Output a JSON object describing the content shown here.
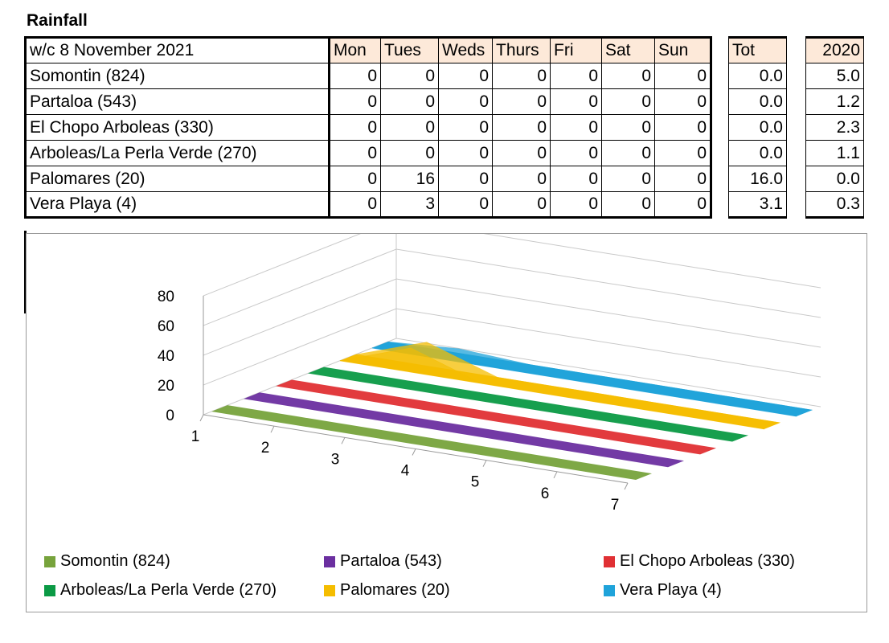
{
  "title": "Rainfall",
  "table": {
    "header_label": "w/c 8 November 2021",
    "days": [
      "Mon",
      "Tues",
      "Weds",
      "Thurs",
      "Fri",
      "Sat",
      "Sun"
    ],
    "tot_label": "Tot",
    "prev_label": "2020",
    "rows": [
      {
        "site": "Somontin (824)",
        "values": [
          "0",
          "0",
          "0",
          "0",
          "0",
          "0",
          "0"
        ],
        "tot": "0.0",
        "prev": "5.0"
      },
      {
        "site": "Partaloa (543)",
        "values": [
          "0",
          "0",
          "0",
          "0",
          "0",
          "0",
          "0"
        ],
        "tot": "0.0",
        "prev": "1.2"
      },
      {
        "site": "El Chopo Arboleas (330)",
        "values": [
          "0",
          "0",
          "0",
          "0",
          "0",
          "0",
          "0"
        ],
        "tot": "0.0",
        "prev": "2.3"
      },
      {
        "site": "Arboleas/La Perla Verde (270)",
        "values": [
          "0",
          "0",
          "0",
          "0",
          "0",
          "0",
          "0"
        ],
        "tot": "0.0",
        "prev": "1.1"
      },
      {
        "site": "Palomares (20)",
        "values": [
          "0",
          "16",
          "0",
          "0",
          "0",
          "0",
          "0"
        ],
        "tot": "16.0",
        "prev": "0.0"
      },
      {
        "site": "Vera Playa (4)",
        "values": [
          "0",
          "3",
          "0",
          "0",
          "0",
          "0",
          "0"
        ],
        "tot": "3.1",
        "prev": "0.3"
      }
    ]
  },
  "chart_data": {
    "type": "area",
    "x": [
      1,
      2,
      3,
      4,
      5,
      6,
      7
    ],
    "yticks": [
      0,
      20,
      40,
      60,
      80
    ],
    "ylim": [
      0,
      80
    ],
    "grid": true,
    "legend_position": "bottom",
    "series": [
      {
        "name": "Somontin (824)",
        "values": [
          0,
          0,
          0,
          0,
          0,
          0,
          0
        ],
        "color": "#77a33c"
      },
      {
        "name": "Partaloa (543)",
        "values": [
          0,
          0,
          0,
          0,
          0,
          0,
          0
        ],
        "color": "#6b2fa0"
      },
      {
        "name": "El Chopo Arboleas (330)",
        "values": [
          0,
          0,
          0,
          0,
          0,
          0,
          0
        ],
        "color": "#e03034"
      },
      {
        "name": "Arboleas/La Perla Verde (270)",
        "values": [
          0,
          0,
          0,
          0,
          0,
          0,
          0
        ],
        "color": "#0b9a45"
      },
      {
        "name": "Palomares (20)",
        "values": [
          0,
          16,
          0,
          0,
          0,
          0,
          0
        ],
        "color": "#f5bd00"
      },
      {
        "name": "Vera Playa (4)",
        "values": [
          0,
          3,
          0,
          0,
          0,
          0,
          0
        ],
        "color": "#1fa3da"
      }
    ]
  }
}
